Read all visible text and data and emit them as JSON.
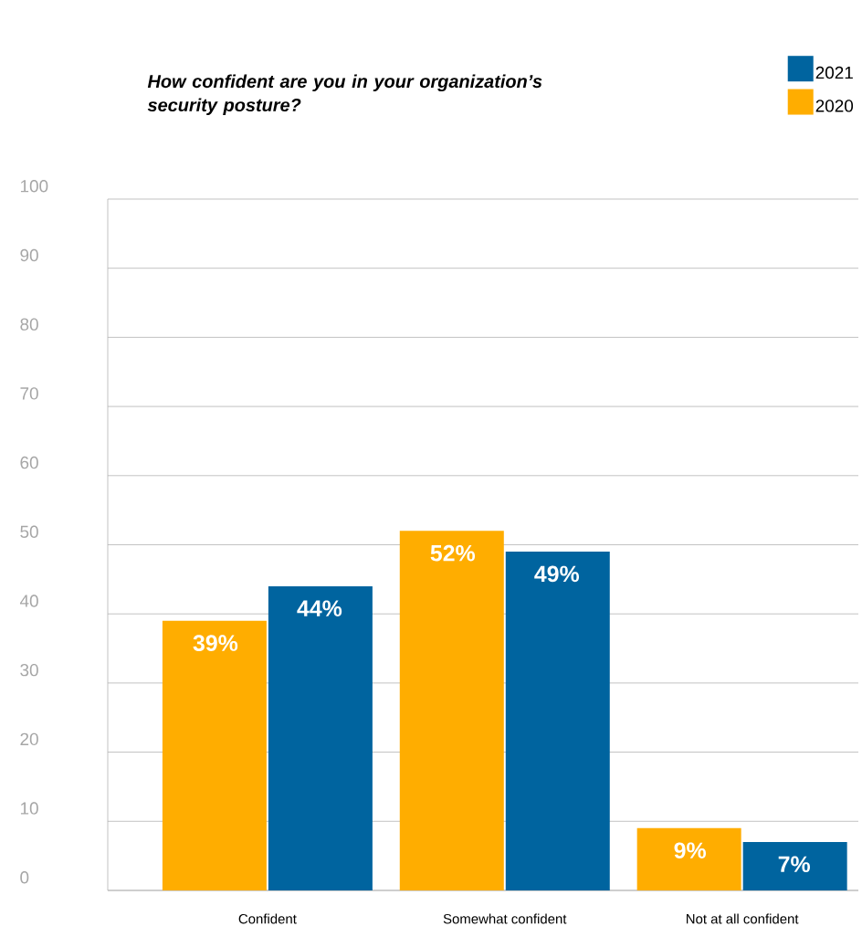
{
  "chart_data": {
    "type": "bar",
    "title": "How confident are you in your organization’s security posture?",
    "categories": [
      "Confident",
      "Somewhat confident",
      "Not at all confident"
    ],
    "series": [
      {
        "name": "2020",
        "color": "#ffad00",
        "values": [
          39,
          52,
          9
        ],
        "value_labels": [
          "39%",
          "52%",
          "9%"
        ]
      },
      {
        "name": "2021",
        "color": "#00649f",
        "values": [
          44,
          49,
          7
        ],
        "value_labels": [
          "44%",
          "49%",
          "7%"
        ]
      }
    ],
    "ylim": [
      0,
      100
    ],
    "yticks": [
      0,
      10,
      20,
      30,
      40,
      50,
      60,
      70,
      80,
      90,
      100
    ],
    "grid": "y",
    "legend": "top right"
  }
}
